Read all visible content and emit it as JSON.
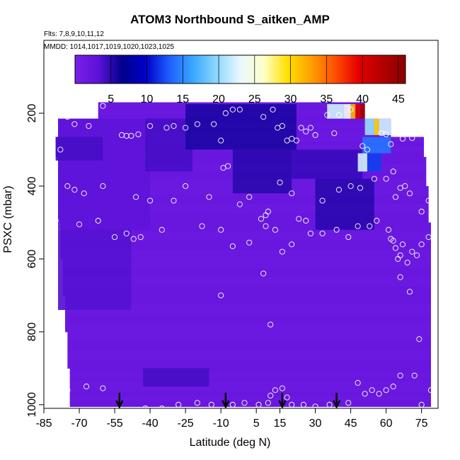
{
  "chart_data": {
    "type": "heatmap",
    "title": "ATOM3 Northbound S_aitken_AMP",
    "subtitle_flights": "Flts: 7,8,9,10,11,12",
    "subtitle_dates": "MMDD: 1014,1017,1019,1020,1023,1025",
    "xlabel": "Latitude (deg N)",
    "ylabel": "PSXC (mbar)",
    "xlim": [
      -85,
      82
    ],
    "ylim": [
      1010,
      0
    ],
    "x_ticks": [
      "-85",
      "-70",
      "-55",
      "-40",
      "-25",
      "-10",
      "5",
      "15",
      "30",
      "45",
      "60",
      "75"
    ],
    "x_tick_values": [
      -85,
      -70,
      -55,
      -40,
      -25,
      -10,
      5,
      15,
      30,
      45,
      60,
      75
    ],
    "y_ticks": [
      "200",
      "400",
      "600",
      "800",
      "1000"
    ],
    "y_tick_values": [
      200,
      400,
      600,
      800,
      1000
    ],
    "colorbar": {
      "min": 0,
      "max": 46,
      "tick_labels": [
        "5",
        "10",
        "15",
        "20",
        "25",
        "30",
        "35",
        "40",
        "45"
      ],
      "tick_values": [
        5,
        10,
        15,
        20,
        25,
        30,
        35,
        40,
        45
      ],
      "colors": [
        "#7a1fe8",
        "#5c12d8",
        "#00008c",
        "#0000c8",
        "#1f5fff",
        "#38a8ff",
        "#8ed8ff",
        "#eaf8ff",
        "#ffffc8",
        "#ffe000",
        "#ffa000",
        "#ff5000",
        "#e60000",
        "#b40000",
        "#8c0000"
      ]
    },
    "field_rows": [
      {
        "p_min": 170,
        "p_max": 215,
        "x_min": -62,
        "x_max": 51
      },
      {
        "p_min": 215,
        "p_max": 265,
        "x_min": -79,
        "x_max": 62
      },
      {
        "p_min": 265,
        "p_max": 320,
        "x_min": -80,
        "x_max": 76
      },
      {
        "p_min": 320,
        "p_max": 400,
        "x_min": -79,
        "x_max": 77
      },
      {
        "p_min": 400,
        "p_max": 500,
        "x_min": -79,
        "x_max": 78
      },
      {
        "p_min": 500,
        "p_max": 600,
        "x_min": -78,
        "x_max": 79
      },
      {
        "p_min": 600,
        "p_max": 700,
        "x_min": -77,
        "x_max": 79
      },
      {
        "p_min": 700,
        "p_max": 800,
        "x_min": -76,
        "x_max": 79
      },
      {
        "p_min": 800,
        "p_max": 900,
        "x_min": -75,
        "x_max": 79
      },
      {
        "p_min": 900,
        "p_max": 950,
        "x_min": -74,
        "x_max": 79
      },
      {
        "p_min": 950,
        "p_max": 1005,
        "x_min": -74,
        "x_max": 79
      }
    ],
    "features": [
      {
        "x1": -79,
        "x2": -40,
        "p1": 215,
        "p2": 520,
        "v": 3
      },
      {
        "x1": -79,
        "x2": -48,
        "p1": 520,
        "p2": 740,
        "v": 3.5
      },
      {
        "x1": -42,
        "x2": -22,
        "p1": 215,
        "p2": 360,
        "v": 4
      },
      {
        "x1": -25,
        "x2": 22,
        "p1": 175,
        "p2": 300,
        "v": 5.5
      },
      {
        "x1": -5,
        "x2": 20,
        "p1": 300,
        "p2": 420,
        "v": 5
      },
      {
        "x1": 20,
        "x2": 50,
        "p1": 300,
        "p2": 380,
        "v": 4.5
      },
      {
        "x1": 30,
        "x2": 55,
        "p1": 380,
        "p2": 520,
        "v": 5
      },
      {
        "x1": -80,
        "x2": -60,
        "p1": 265,
        "p2": 330,
        "v": 4
      },
      {
        "x1": -43,
        "x2": -15,
        "p1": 900,
        "p2": 950,
        "v": 4
      },
      {
        "x1": 35,
        "x2": 42,
        "p1": 175,
        "p2": 215,
        "v": 22
      },
      {
        "x1": 42,
        "x2": 45,
        "p1": 175,
        "p2": 215,
        "v": 24
      },
      {
        "x1": 45,
        "x2": 47,
        "p1": 175,
        "p2": 215,
        "v": 32
      },
      {
        "x1": 47,
        "x2": 49,
        "p1": 175,
        "p2": 215,
        "v": 40
      },
      {
        "x1": 49,
        "x2": 51,
        "p1": 175,
        "p2": 215,
        "v": 44
      },
      {
        "x1": 51,
        "x2": 55,
        "p1": 215,
        "p2": 260,
        "v": 20
      },
      {
        "x1": 55,
        "x2": 57,
        "p1": 215,
        "p2": 260,
        "v": 30
      },
      {
        "x1": 57,
        "x2": 62,
        "p1": 215,
        "p2": 260,
        "v": 22
      },
      {
        "x1": 50,
        "x2": 62,
        "p1": 265,
        "p2": 310,
        "v": 14
      },
      {
        "x1": 52,
        "x2": 58,
        "p1": 310,
        "p2": 360,
        "v": 12
      },
      {
        "x1": 48,
        "x2": 52,
        "p1": 310,
        "p2": 360,
        "v": 22
      }
    ],
    "arrows_x": [
      -53,
      -8,
      16,
      39
    ],
    "sample_points": [
      [
        -83,
        325
      ],
      [
        -75,
        210
      ],
      [
        -70,
        205
      ],
      [
        -72,
        230
      ],
      [
        -66,
        235
      ],
      [
        -60,
        180
      ],
      [
        -52,
        260
      ],
      [
        -50,
        262
      ],
      [
        -48,
        262
      ],
      [
        -45,
        258
      ],
      [
        -40,
        235
      ],
      [
        -33,
        240
      ],
      [
        -30,
        235
      ],
      [
        -25,
        240
      ],
      [
        -20,
        230
      ],
      [
        -13,
        230
      ],
      [
        -8,
        200
      ],
      [
        -5,
        190
      ],
      [
        -2,
        190
      ],
      [
        -10,
        275
      ],
      [
        -9,
        350
      ],
      [
        -7,
        345
      ],
      [
        8,
        210
      ],
      [
        12,
        190
      ],
      [
        14,
        240
      ],
      [
        16,
        235
      ],
      [
        18,
        275
      ],
      [
        20,
        270
      ],
      [
        22,
        275
      ],
      [
        24,
        240
      ],
      [
        26,
        250
      ],
      [
        28,
        240
      ],
      [
        30,
        260
      ],
      [
        35,
        205
      ],
      [
        38,
        255
      ],
      [
        40,
        205
      ],
      [
        45,
        190
      ],
      [
        50,
        290
      ],
      [
        52,
        300
      ],
      [
        58,
        255
      ],
      [
        60,
        258
      ],
      [
        62,
        285
      ],
      [
        67,
        270
      ],
      [
        71,
        268
      ],
      [
        -78,
        300
      ],
      [
        -75,
        400
      ],
      [
        -72,
        410
      ],
      [
        -68,
        420
      ],
      [
        -60,
        400
      ],
      [
        -46,
        430
      ],
      [
        -40,
        440
      ],
      [
        -30,
        440
      ],
      [
        -25,
        400
      ],
      [
        -15,
        430
      ],
      [
        -2,
        450
      ],
      [
        2,
        430
      ],
      [
        7,
        490
      ],
      [
        9,
        480
      ],
      [
        10,
        470
      ],
      [
        15,
        390
      ],
      [
        20,
        420
      ],
      [
        23,
        490
      ],
      [
        28,
        530
      ],
      [
        33,
        440
      ],
      [
        40,
        410
      ],
      [
        45,
        400
      ],
      [
        49,
        405
      ],
      [
        55,
        380
      ],
      [
        60,
        380
      ],
      [
        63,
        360
      ],
      [
        64,
        430
      ],
      [
        66,
        405
      ],
      [
        68,
        400
      ],
      [
        70,
        420
      ],
      [
        75,
        470
      ],
      [
        78,
        440
      ],
      [
        80,
        490
      ],
      [
        -80,
        495
      ],
      [
        -70,
        505
      ],
      [
        -62,
        495
      ],
      [
        -55,
        540
      ],
      [
        -50,
        530
      ],
      [
        -47,
        545
      ],
      [
        -44,
        540
      ],
      [
        -35,
        520
      ],
      [
        -18,
        510
      ],
      [
        -10,
        520
      ],
      [
        -5,
        565
      ],
      [
        2,
        555
      ],
      [
        9,
        510
      ],
      [
        13,
        520
      ],
      [
        16,
        580
      ],
      [
        20,
        560
      ],
      [
        26,
        495
      ],
      [
        33,
        530
      ],
      [
        39,
        520
      ],
      [
        44,
        540
      ],
      [
        48,
        510
      ],
      [
        53,
        510
      ],
      [
        56,
        495
      ],
      [
        61,
        520
      ],
      [
        62,
        545
      ],
      [
        63,
        550
      ],
      [
        64,
        570
      ],
      [
        66,
        590
      ],
      [
        67,
        560
      ],
      [
        69,
        610
      ],
      [
        71,
        580
      ],
      [
        73,
        590
      ],
      [
        75,
        560
      ],
      [
        78,
        540
      ],
      [
        -10,
        700
      ],
      [
        8,
        640
      ],
      [
        11,
        780
      ],
      [
        65,
        600
      ],
      [
        66,
        650
      ],
      [
        70,
        690
      ],
      [
        74,
        820
      ],
      [
        -75,
        960
      ],
      [
        -67,
        950
      ],
      [
        -60,
        955
      ],
      [
        -42,
        1010
      ],
      [
        -35,
        1010
      ],
      [
        -28,
        1000
      ],
      [
        -20,
        995
      ],
      [
        -14,
        1000
      ],
      [
        -5,
        1000
      ],
      [
        0,
        995
      ],
      [
        6,
        1000
      ],
      [
        10,
        995
      ],
      [
        11,
        975
      ],
      [
        13,
        960
      ],
      [
        16,
        955
      ],
      [
        18,
        980
      ],
      [
        20,
        1000
      ],
      [
        25,
        1000
      ],
      [
        30,
        1005
      ],
      [
        36,
        1000
      ],
      [
        44,
        995
      ],
      [
        48,
        940
      ],
      [
        51,
        970
      ],
      [
        54,
        960
      ],
      [
        57,
        970
      ],
      [
        60,
        960
      ],
      [
        63,
        950
      ],
      [
        66,
        920
      ],
      [
        72,
        920
      ],
      [
        75,
        1000
      ],
      [
        79,
        960
      ]
    ]
  }
}
